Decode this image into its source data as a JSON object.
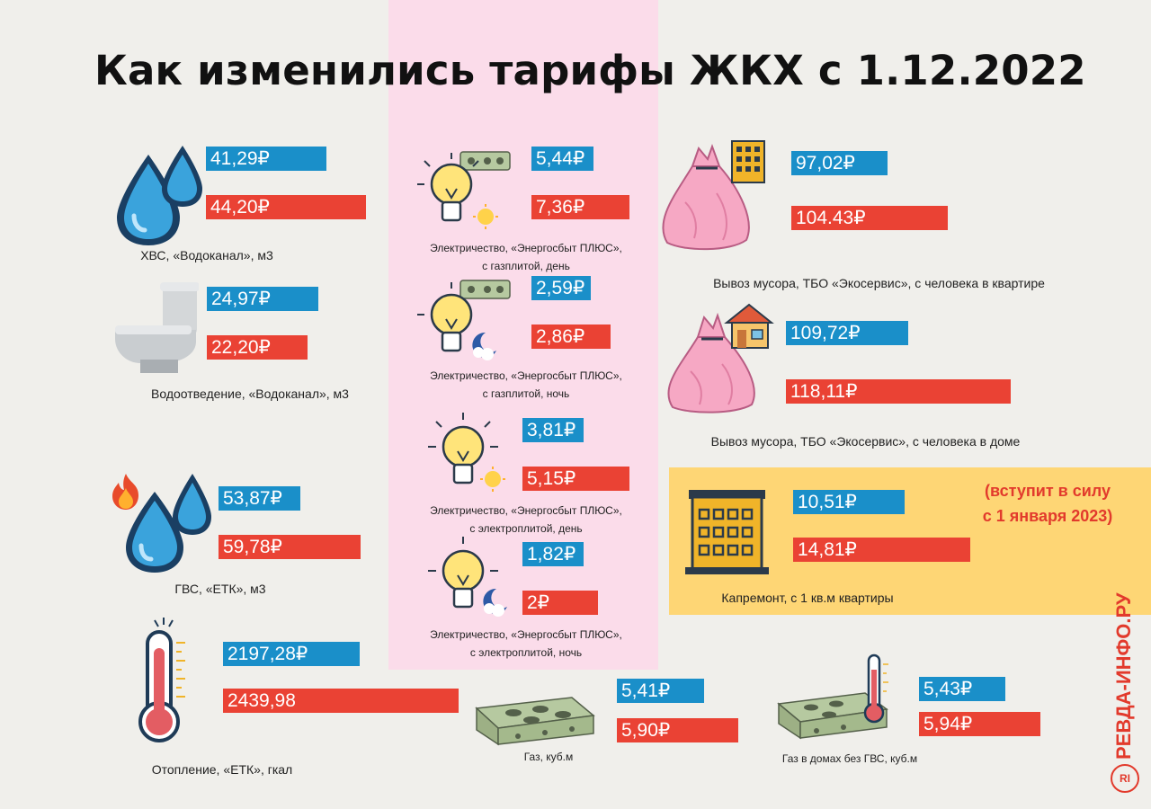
{
  "title": "Как изменились тарифы ЖКХ с 1.12.2022",
  "colors": {
    "old_bar": "#1a8fc9",
    "new_bar": "#ea4234",
    "panel_pink": "#fbdcea",
    "panel_yellow": "#fed675",
    "note": "#e23a2c",
    "background": "#f0efeb"
  },
  "items": {
    "hvs": {
      "old": "41,29₽",
      "new": "44,20₽",
      "caption": "ХВС, «Водоканал», м3",
      "icon": "water-drops-icon"
    },
    "vodootvedenie": {
      "old": "24,97₽",
      "new": "22,20₽",
      "caption": "Водоотведение, «Водоканал», м3",
      "icon": "toilet-icon"
    },
    "gvs": {
      "old": "53,87₽",
      "new": "59,78₽",
      "caption": "ГВС, «ЕТК», м3",
      "icon": "hot-water-icon"
    },
    "otoplenie": {
      "old": "2197,28₽",
      "new": "2439,98",
      "caption": "Отопление, «ЕТК», гкал",
      "icon": "thermometer-icon"
    },
    "el_gas_day": {
      "old": "5,44₽",
      "new": "7,36₽",
      "caption1": "Электричество, «Энергосбыт ПЛЮС»,",
      "caption2": "с газплитой, день",
      "icon": "lightbulb-day-icon"
    },
    "el_gas_night": {
      "old": "2,59₽",
      "new": "2,86₽",
      "caption1": "Электричество, «Энергосбыт ПЛЮС»,",
      "caption2": "с газплитой, ночь",
      "icon": "lightbulb-night-icon"
    },
    "el_elec_day": {
      "old": "3,81₽",
      "new": "5,15₽",
      "caption1": "Электричество, «Энергосбыт ПЛЮС»,",
      "caption2": "с электроплитой, день",
      "icon": "lightbulb-day-icon"
    },
    "el_elec_night": {
      "old": "1,82₽",
      "new": "2₽",
      "caption1": "Электричество, «Энергосбыт ПЛЮС»,",
      "caption2": "с электроплитой, ночь",
      "icon": "lightbulb-night-icon"
    },
    "gas": {
      "old": "5,41₽",
      "new": "5,90₽",
      "caption": "Газ, куб.м",
      "icon": "gas-stove-icon"
    },
    "gas_no_gvs": {
      "old": "5,43₽",
      "new": "5,94₽",
      "caption": "Газ в домах без ГВС, куб.м",
      "icon": "gas-stove-thermometer-icon"
    },
    "tbo_flat": {
      "old": "97,02₽",
      "new": "104.43₽",
      "caption": "Вывоз мусора, ТБО «Экосервис», с человека в квартире",
      "icon": "trash-bag-apartment-icon"
    },
    "tbo_house": {
      "old": "109,72₽",
      "new": "118,11₽",
      "caption": "Вывоз мусора, ТБО «Экосервис», с человека в доме",
      "icon": "trash-bag-house-icon"
    },
    "kapremont": {
      "old": "10,51₽",
      "new": "14,81₽",
      "caption": "Капремонт, с 1 кв.м квартиры",
      "icon": "building-icon"
    }
  },
  "note": {
    "line1": "(вступит в силу",
    "line2": "с 1 января 2023)"
  },
  "brand": {
    "text": "РЕВДА-ИНФО.РУ",
    "logo_text": "RI"
  }
}
